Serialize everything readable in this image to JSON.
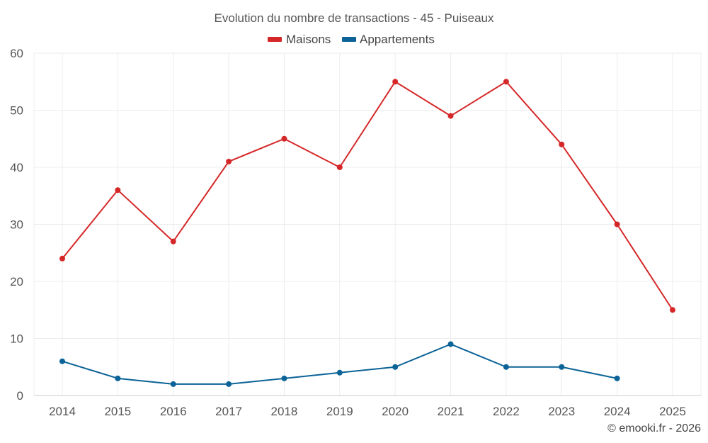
{
  "chart_data": {
    "type": "line",
    "title": "Evolution du nombre de transactions - 45 - Puiseaux",
    "xlabel": "",
    "ylabel": "",
    "x": [
      "2014",
      "2015",
      "2016",
      "2017",
      "2018",
      "2019",
      "2020",
      "2021",
      "2022",
      "2023",
      "2024",
      "2025"
    ],
    "ylim": [
      0,
      60
    ],
    "yticks": [
      "0",
      "10",
      "20",
      "30",
      "40",
      "50",
      "60"
    ],
    "grid": true,
    "legend_position": "top-center",
    "series": [
      {
        "name": "Maisons",
        "color": "#d62728",
        "values": [
          24,
          36,
          27,
          41,
          45,
          40,
          55,
          49,
          55,
          44,
          30,
          15
        ]
      },
      {
        "name": "Appartements",
        "color": "#0b6397",
        "values": [
          6,
          3,
          2,
          2,
          3,
          4,
          5,
          9,
          5,
          5,
          3,
          null
        ]
      }
    ]
  },
  "credit": "© emooki.fr - 2026"
}
